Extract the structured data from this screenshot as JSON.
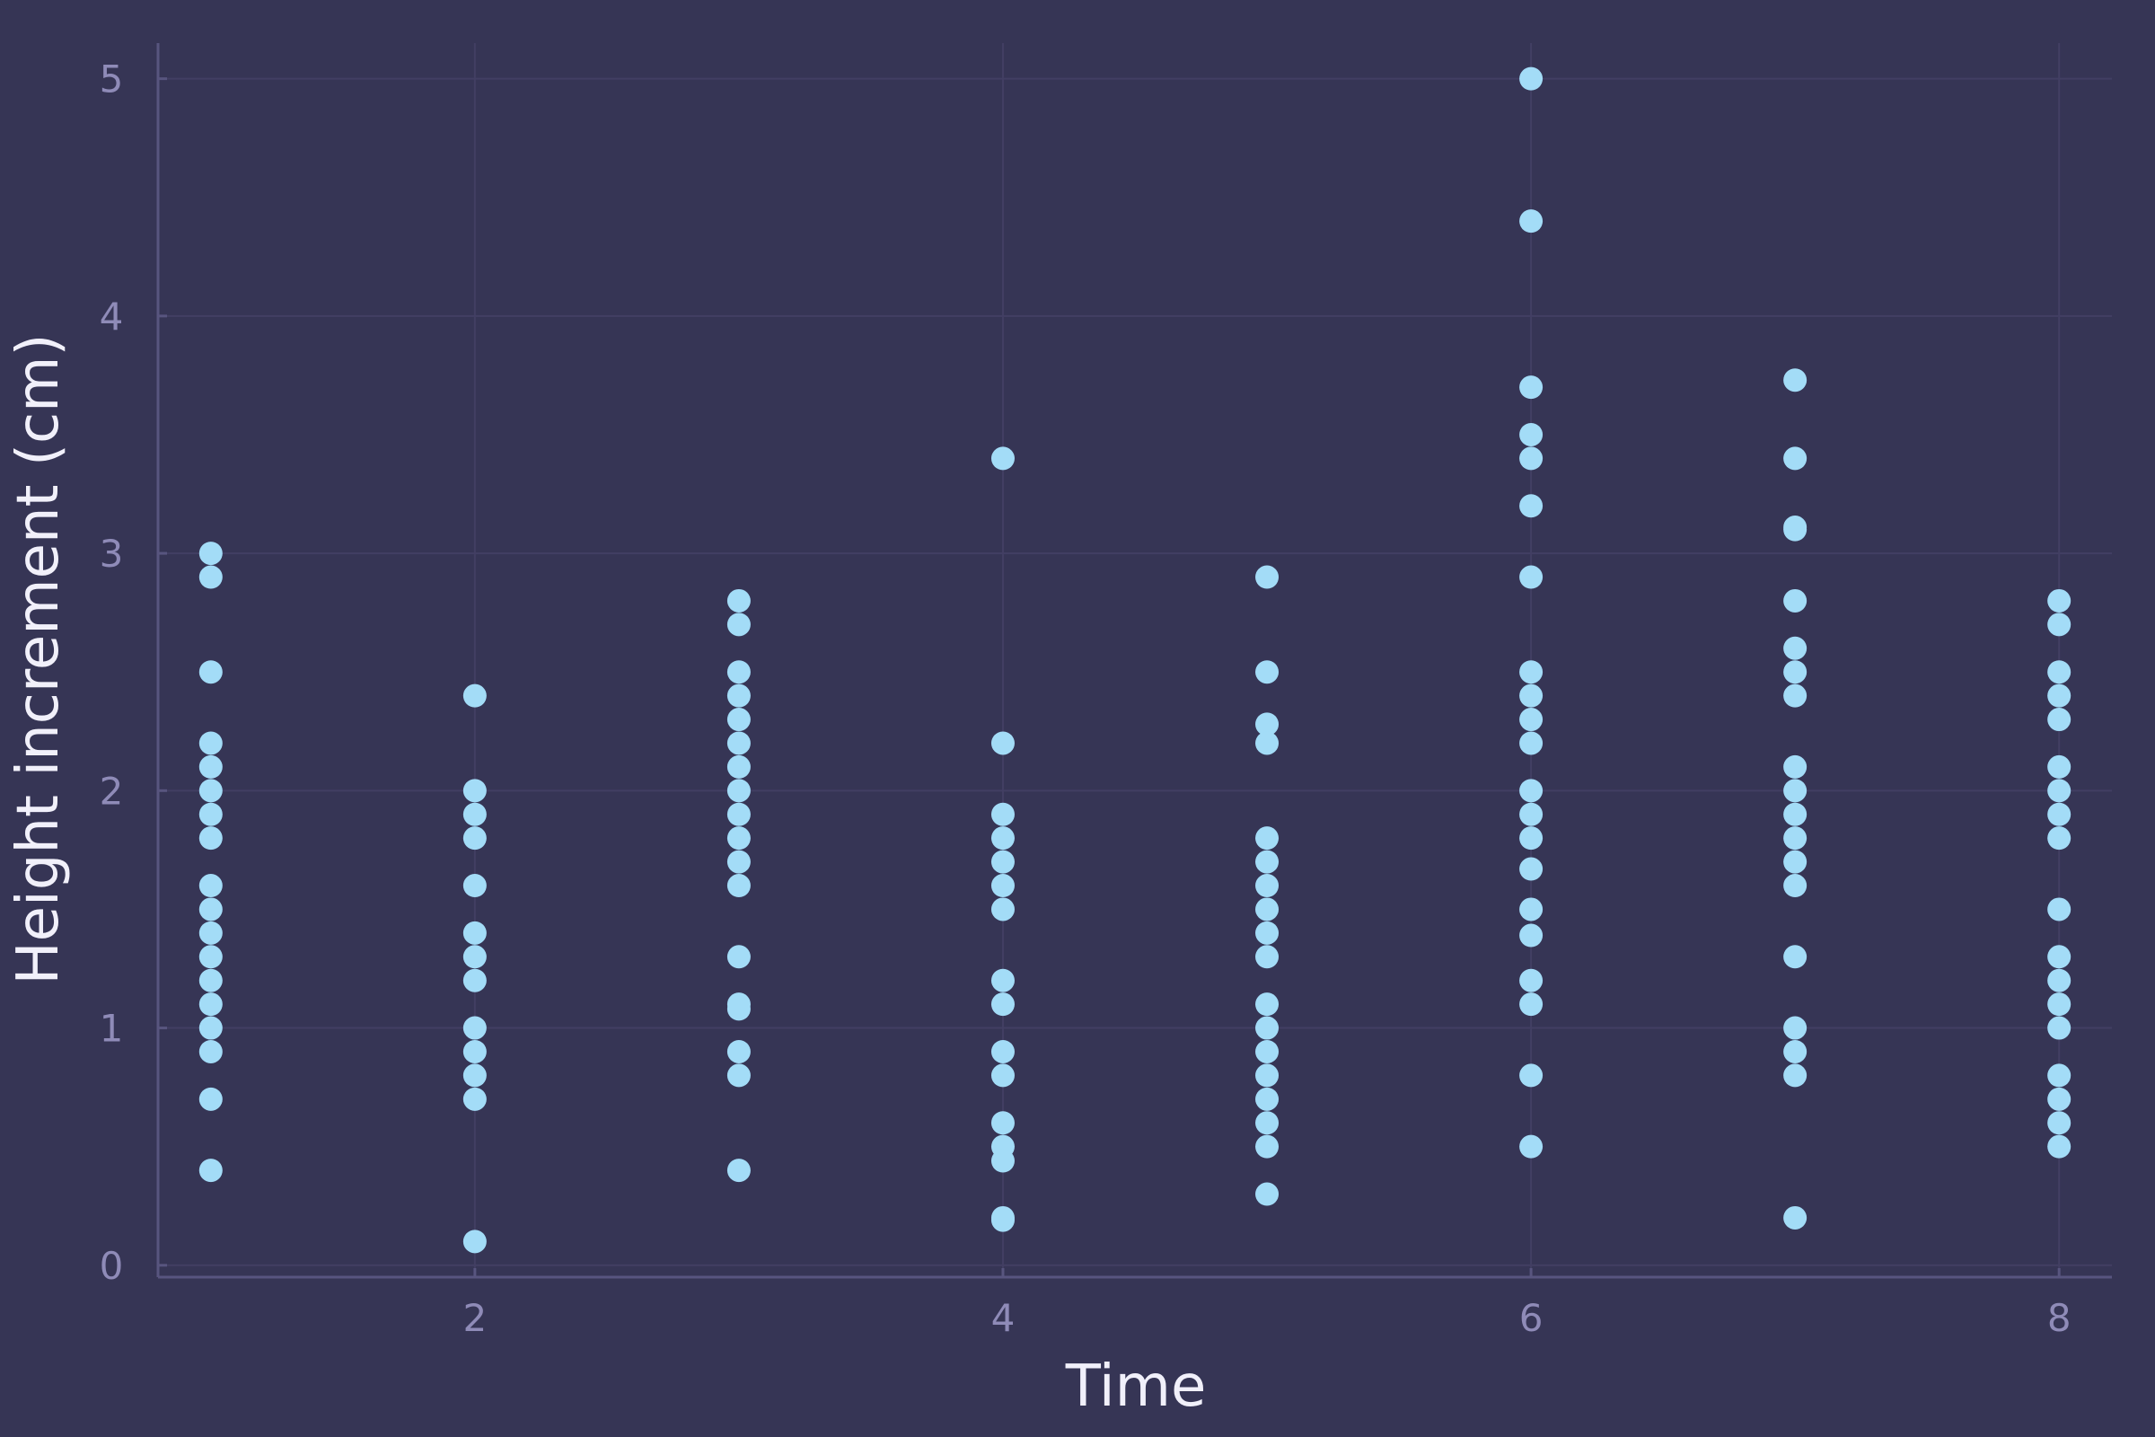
{
  "colors": {
    "background": "#363555",
    "point": "#a3dcf7",
    "tick_text": "#8f8bb8",
    "axis_title": "#f1f0fa",
    "grid": "#423f63",
    "axis": "#58557f"
  },
  "chart_data": {
    "type": "scatter",
    "title": "",
    "xlabel": "Time",
    "ylabel": "Height increment (cm)",
    "xlim": [
      0.8,
      8.2
    ],
    "ylim": [
      -0.05,
      5.15
    ],
    "xticks": [
      2,
      4,
      6,
      8
    ],
    "yticks": [
      0,
      1,
      2,
      3,
      4,
      5
    ],
    "grid": true,
    "legend": "none",
    "series": [
      {
        "marker_color": "#a3dcf7",
        "points": [
          [
            1,
            3.0
          ],
          [
            1,
            2.9
          ],
          [
            1,
            2.5
          ],
          [
            1,
            2.2
          ],
          [
            1,
            2.1
          ],
          [
            1,
            2.0
          ],
          [
            1,
            1.9
          ],
          [
            1,
            1.8
          ],
          [
            1,
            1.6
          ],
          [
            1,
            1.5
          ],
          [
            1,
            1.4
          ],
          [
            1,
            1.3
          ],
          [
            1,
            1.2
          ],
          [
            1,
            1.1
          ],
          [
            1,
            1.0
          ],
          [
            1,
            0.9
          ],
          [
            1,
            0.7
          ],
          [
            1,
            0.4
          ],
          [
            2,
            2.4
          ],
          [
            2,
            2.0
          ],
          [
            2,
            1.9
          ],
          [
            2,
            1.8
          ],
          [
            2,
            1.6
          ],
          [
            2,
            1.4
          ],
          [
            2,
            1.3
          ],
          [
            2,
            1.2
          ],
          [
            2,
            1.0
          ],
          [
            2,
            0.9
          ],
          [
            2,
            0.8
          ],
          [
            2,
            0.7
          ],
          [
            2,
            0.1
          ],
          [
            3,
            2.8
          ],
          [
            3,
            2.7
          ],
          [
            3,
            2.5
          ],
          [
            3,
            2.4
          ],
          [
            3,
            2.3
          ],
          [
            3,
            2.2
          ],
          [
            3,
            2.1
          ],
          [
            3,
            2.0
          ],
          [
            3,
            1.9
          ],
          [
            3,
            1.8
          ],
          [
            3,
            1.7
          ],
          [
            3,
            1.6
          ],
          [
            3,
            1.3
          ],
          [
            3,
            1.1
          ],
          [
            3,
            1.08
          ],
          [
            3,
            0.9
          ],
          [
            3,
            0.8
          ],
          [
            3,
            0.4
          ],
          [
            4,
            3.4
          ],
          [
            4,
            2.2
          ],
          [
            4,
            1.9
          ],
          [
            4,
            1.8
          ],
          [
            4,
            1.7
          ],
          [
            4,
            1.6
          ],
          [
            4,
            1.5
          ],
          [
            4,
            1.2
          ],
          [
            4,
            1.1
          ],
          [
            4,
            0.9
          ],
          [
            4,
            0.8
          ],
          [
            4,
            0.6
          ],
          [
            4,
            0.5
          ],
          [
            4,
            0.44
          ],
          [
            4,
            0.2
          ],
          [
            4,
            0.19
          ],
          [
            5,
            2.9
          ],
          [
            5,
            2.5
          ],
          [
            5,
            2.28
          ],
          [
            5,
            2.2
          ],
          [
            5,
            1.8
          ],
          [
            5,
            1.7
          ],
          [
            5,
            1.6
          ],
          [
            5,
            1.5
          ],
          [
            5,
            1.4
          ],
          [
            5,
            1.3
          ],
          [
            5,
            1.1
          ],
          [
            5,
            1.0
          ],
          [
            5,
            0.9
          ],
          [
            5,
            0.8
          ],
          [
            5,
            0.7
          ],
          [
            5,
            0.6
          ],
          [
            5,
            0.5
          ],
          [
            5,
            0.3
          ],
          [
            6,
            5.0
          ],
          [
            6,
            4.4
          ],
          [
            6,
            3.7
          ],
          [
            6,
            3.5
          ],
          [
            6,
            3.4
          ],
          [
            6,
            3.2
          ],
          [
            6,
            2.9
          ],
          [
            6,
            2.5
          ],
          [
            6,
            2.4
          ],
          [
            6,
            2.3
          ],
          [
            6,
            2.2
          ],
          [
            6,
            2.0
          ],
          [
            6,
            1.9
          ],
          [
            6,
            1.8
          ],
          [
            6,
            1.67
          ],
          [
            6,
            1.5
          ],
          [
            6,
            1.39
          ],
          [
            6,
            1.2
          ],
          [
            6,
            1.1
          ],
          [
            6,
            0.8
          ],
          [
            6,
            0.5
          ],
          [
            7,
            3.73
          ],
          [
            7,
            3.4
          ],
          [
            7,
            3.11
          ],
          [
            7,
            3.1
          ],
          [
            7,
            2.8
          ],
          [
            7,
            2.6
          ],
          [
            7,
            2.5
          ],
          [
            7,
            2.4
          ],
          [
            7,
            2.1
          ],
          [
            7,
            2.0
          ],
          [
            7,
            1.9
          ],
          [
            7,
            1.8
          ],
          [
            7,
            1.7
          ],
          [
            7,
            1.6
          ],
          [
            7,
            1.3
          ],
          [
            7,
            1.0
          ],
          [
            7,
            0.9
          ],
          [
            7,
            0.8
          ],
          [
            7,
            0.2
          ],
          [
            8,
            2.8
          ],
          [
            8,
            2.7
          ],
          [
            8,
            2.5
          ],
          [
            8,
            2.4
          ],
          [
            8,
            2.3
          ],
          [
            8,
            2.1
          ],
          [
            8,
            2.0
          ],
          [
            8,
            1.9
          ],
          [
            8,
            1.8
          ],
          [
            8,
            1.5
          ],
          [
            8,
            1.3
          ],
          [
            8,
            1.2
          ],
          [
            8,
            1.1
          ],
          [
            8,
            1.0
          ],
          [
            8,
            0.8
          ],
          [
            8,
            0.7
          ],
          [
            8,
            0.6
          ],
          [
            8,
            0.5
          ]
        ]
      }
    ]
  }
}
